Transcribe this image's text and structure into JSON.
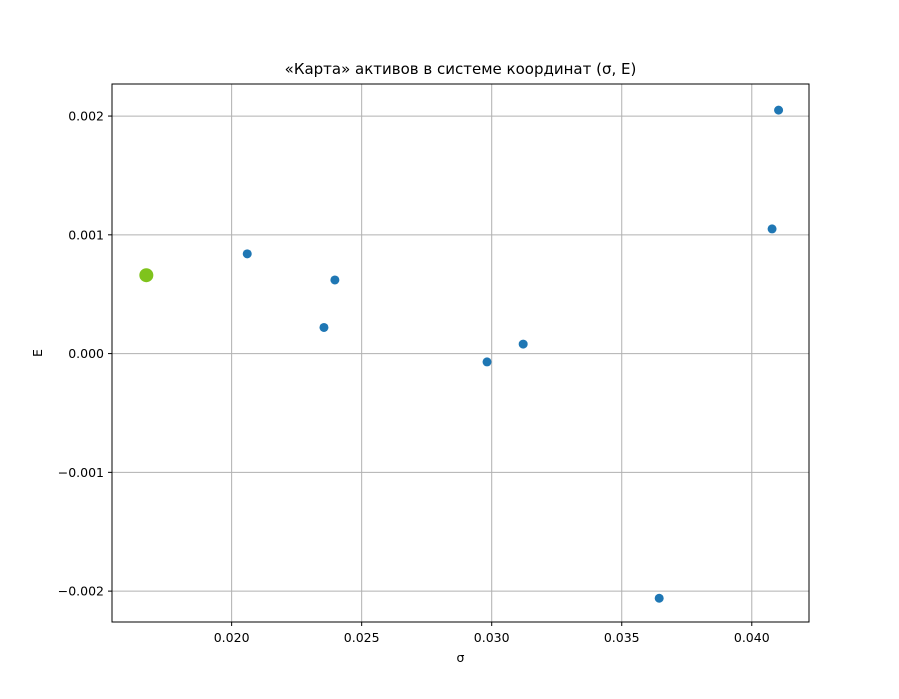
{
  "chart_data": {
    "type": "scatter",
    "title": "«Карта» активов в системе координат (σ, E)",
    "xlabel": "σ",
    "ylabel": "E",
    "xlim": [
      0.0154,
      0.0422
    ],
    "ylim": [
      -0.00226,
      0.00227
    ],
    "grid": true,
    "x_ticks": [
      {
        "value": 0.02,
        "label": "0.020"
      },
      {
        "value": 0.025,
        "label": "0.025"
      },
      {
        "value": 0.03,
        "label": "0.030"
      },
      {
        "value": 0.035,
        "label": "0.035"
      },
      {
        "value": 0.04,
        "label": "0.040"
      }
    ],
    "y_ticks": [
      {
        "value": -0.002,
        "label": "−0.002"
      },
      {
        "value": -0.001,
        "label": "−0.001"
      },
      {
        "value": 0.0,
        "label": "0.000"
      },
      {
        "value": 0.001,
        "label": "0.001"
      },
      {
        "value": 0.002,
        "label": "0.002"
      }
    ],
    "series": [
      {
        "color": "#1f77b4",
        "marker": "small-circle",
        "points": [
          {
            "x": 0.0206,
            "y": 0.00084
          },
          {
            "x": 0.02355,
            "y": 0.00022
          },
          {
            "x": 0.02397,
            "y": 0.00062
          },
          {
            "x": 0.02982,
            "y": -7e-05
          },
          {
            "x": 0.03121,
            "y": 8e-05
          },
          {
            "x": 0.03644,
            "y": -0.00206
          },
          {
            "x": 0.04078,
            "y": 0.00105
          },
          {
            "x": 0.04103,
            "y": 0.00205
          }
        ]
      },
      {
        "color": "#7fc31c",
        "marker": "large-circle",
        "points": [
          {
            "x": 0.01672,
            "y": 0.00066
          }
        ]
      }
    ]
  }
}
